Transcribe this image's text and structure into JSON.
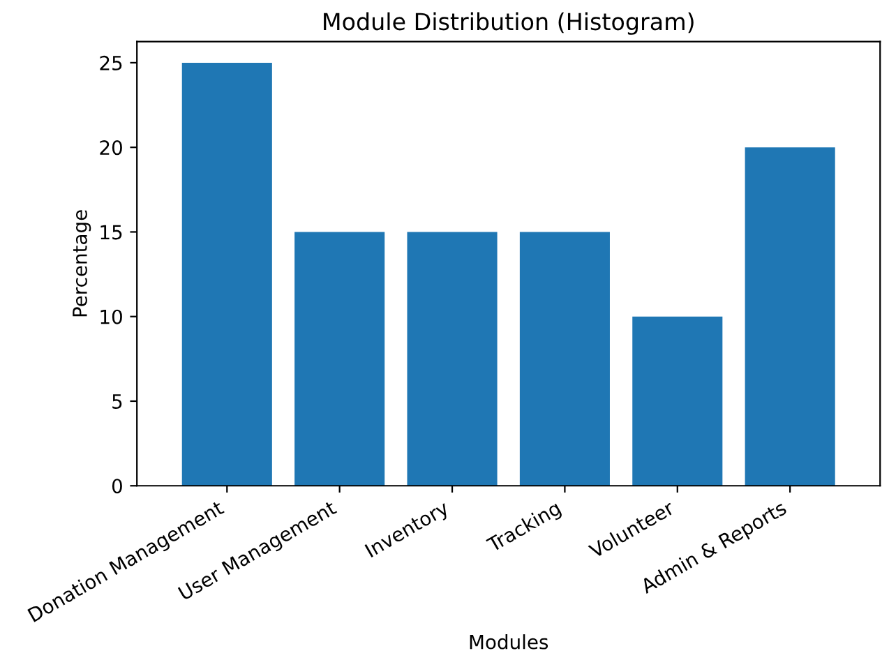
{
  "chart_data": {
    "type": "bar",
    "title": "Module Distribution (Histogram)",
    "xlabel": "Modules",
    "ylabel": "Percentage",
    "categories": [
      "Donation Management",
      "User Management",
      "Inventory",
      "Tracking",
      "Volunteer",
      "Admin & Reports"
    ],
    "values": [
      25,
      15,
      15,
      15,
      10,
      20
    ],
    "color": "#1f77b4",
    "ylim": [
      0,
      26.25
    ],
    "yticks": [
      0,
      5,
      10,
      15,
      20,
      25
    ],
    "grid": false
  }
}
